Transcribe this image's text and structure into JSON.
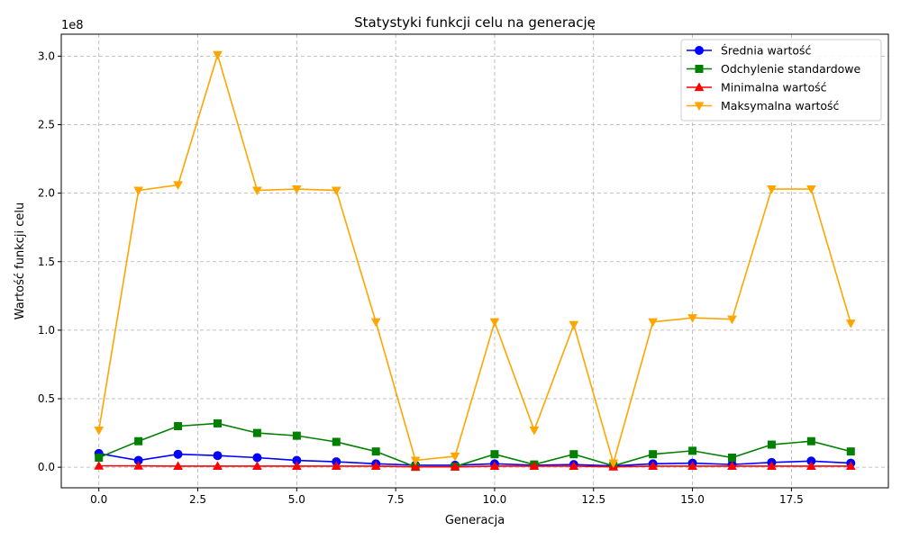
{
  "chart_data": {
    "type": "line",
    "title": "Statystyki funkcji celu na generację",
    "xlabel": "Generacja",
    "ylabel": "Wartość funkcji celu",
    "y_offset_label": "1e8",
    "xlim": [
      -0.95,
      19.95
    ],
    "ylim": [
      -0.15,
      3.16
    ],
    "x_ticks": [
      0,
      2.5,
      5,
      7.5,
      10,
      12.5,
      15,
      17.5
    ],
    "x_tick_labels": [
      "0.0",
      "2.5",
      "5.0",
      "7.5",
      "10.0",
      "12.5",
      "15.0",
      "17.5"
    ],
    "y_ticks": [
      0,
      0.5,
      1.0,
      1.5,
      2.0,
      2.5,
      3.0
    ],
    "y_tick_labels": [
      "0.0",
      "0.5",
      "1.0",
      "1.5",
      "2.0",
      "2.5",
      "3.0"
    ],
    "grid": true,
    "legend_position": "top-right",
    "x": [
      0,
      1,
      2,
      3,
      4,
      5,
      6,
      7,
      8,
      9,
      10,
      11,
      12,
      13,
      14,
      15,
      16,
      17,
      18,
      19
    ],
    "series": [
      {
        "name": "Średnia wartość",
        "color": "#0000ff",
        "marker": "circle",
        "values": [
          0.1,
          0.05,
          0.095,
          0.085,
          0.07,
          0.05,
          0.04,
          0.025,
          0.015,
          0.015,
          0.025,
          0.015,
          0.02,
          0.01,
          0.025,
          0.03,
          0.02,
          0.035,
          0.045,
          0.03
        ]
      },
      {
        "name": "Odchylenie standardowe",
        "color": "#008000",
        "marker": "square",
        "values": [
          0.07,
          0.19,
          0.3,
          0.32,
          0.25,
          0.23,
          0.185,
          0.115,
          0.003,
          0.005,
          0.095,
          0.02,
          0.095,
          0.01,
          0.095,
          0.12,
          0.07,
          0.165,
          0.19,
          0.115
        ]
      },
      {
        "name": "Minimalna wartość",
        "color": "#ff0000",
        "marker": "triangle-up",
        "values": [
          0.01,
          0.01,
          0.008,
          0.008,
          0.008,
          0.008,
          0.008,
          0.008,
          0.003,
          0.003,
          0.008,
          0.008,
          0.008,
          0.003,
          0.008,
          0.008,
          0.008,
          0.008,
          0.008,
          0.008
        ]
      },
      {
        "name": "Maksymalna wartość",
        "color": "#ffa500",
        "marker": "triangle-down",
        "values": [
          0.27,
          2.02,
          2.06,
          3.01,
          2.02,
          2.03,
          2.02,
          1.06,
          0.05,
          0.08,
          1.06,
          0.27,
          1.04,
          0.03,
          1.06,
          1.09,
          1.08,
          2.03,
          2.03,
          1.05
        ]
      }
    ]
  }
}
